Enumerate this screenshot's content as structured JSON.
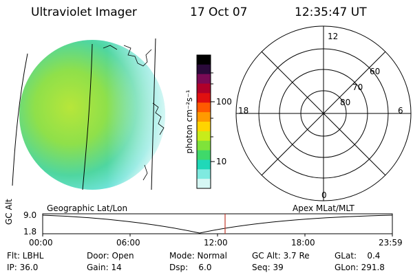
{
  "header": {
    "instrument": "Ultraviolet Imager",
    "date": "17 Oct 07",
    "time": "12:35:47 UT"
  },
  "colorbar": {
    "unit_label": "photon cm⁻²s⁻¹",
    "ticks": [
      "100",
      "10"
    ],
    "colors": [
      "#000000",
      "#2a0a3a",
      "#7a0a55",
      "#b0002a",
      "#e01010",
      "#ff5a00",
      "#ff9a00",
      "#ffd400",
      "#c8ec1a",
      "#7fe33a",
      "#3fd96a",
      "#20d8b8",
      "#7feae0",
      "#d6f7f4"
    ]
  },
  "polar_plot": {
    "mlt_labels": {
      "top": "12",
      "left": "18",
      "right": "6",
      "bottom": "0"
    },
    "lat_labels": [
      "60",
      "70",
      "80"
    ]
  },
  "timeline": {
    "axis_label": "GC Alt",
    "y_ticks": [
      "9.0",
      "1.8"
    ],
    "left_label": "Geographic Lat/Lon",
    "right_label": "Apex MLat/MLT",
    "x_ticks": [
      "00:00",
      "06:00",
      "12:00",
      "18:00",
      "23:59"
    ],
    "marker_color": "#c0392b"
  },
  "info": {
    "filter": "Flt: LBHL",
    "ip": "IP: 36.0",
    "door": "Door: Open",
    "gain": "Gain: 14",
    "mode": "Mode: Normal",
    "dsp": "Dsp:    6.0",
    "gc_alt": "GC Alt: 3.7 Re",
    "seq": "Seq: 39",
    "glat": "GLat:    0.4",
    "glon": "GLon: 291.8"
  }
}
